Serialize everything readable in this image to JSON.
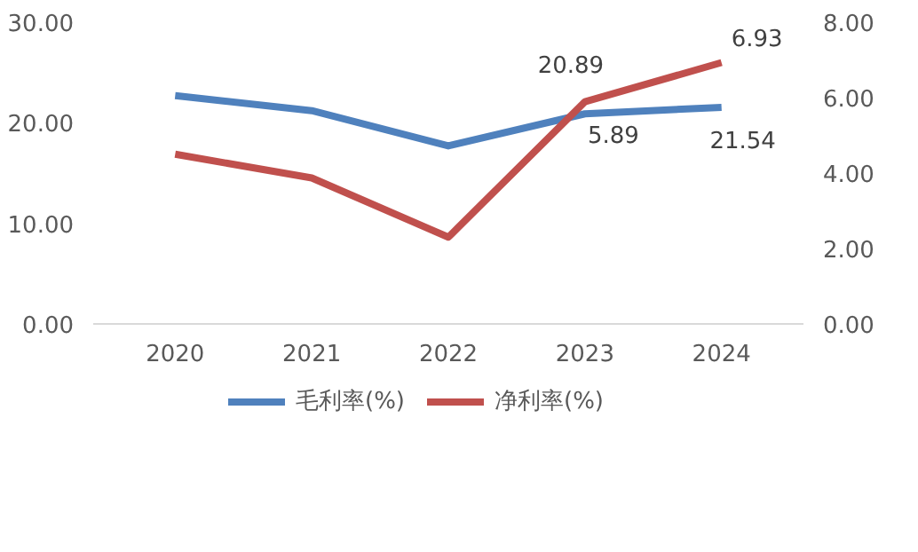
{
  "chart_data": {
    "type": "line",
    "categories": [
      "2020",
      "2021",
      "2022",
      "2023",
      "2024"
    ],
    "ylim": [
      0,
      30
    ],
    "yticks": [
      {
        "value": 0,
        "label": "0.00"
      },
      {
        "value": 10,
        "label": "10.00"
      },
      {
        "value": 20,
        "label": "20.00"
      },
      {
        "value": 30,
        "label": "30.00"
      }
    ],
    "y2lim": [
      0,
      8
    ],
    "y2ticks": [
      {
        "value": 0,
        "label": "0.00"
      },
      {
        "value": 2,
        "label": "2.00"
      },
      {
        "value": 4,
        "label": "4.00"
      },
      {
        "value": 6,
        "label": "6.00"
      },
      {
        "value": 8,
        "label": "8.00"
      }
    ],
    "grid": false,
    "legend": "bottom",
    "marker": "none",
    "line_style": "solid",
    "series": [
      {
        "name": "毛利率(%)",
        "color": "#4f81bd",
        "values": [
          22.7,
          21.2,
          17.7,
          20.89,
          21.54
        ],
        "value_labels": [
          null,
          null,
          null,
          "20.89",
          "21.54"
        ]
      },
      {
        "name": "净利率(%)",
        "color": "#c0504d",
        "axis": "y2",
        "values": [
          4.5,
          3.87,
          2.3,
          5.89,
          6.93
        ],
        "value_labels": [
          null,
          null,
          null,
          "5.89",
          "6.93"
        ]
      }
    ]
  }
}
